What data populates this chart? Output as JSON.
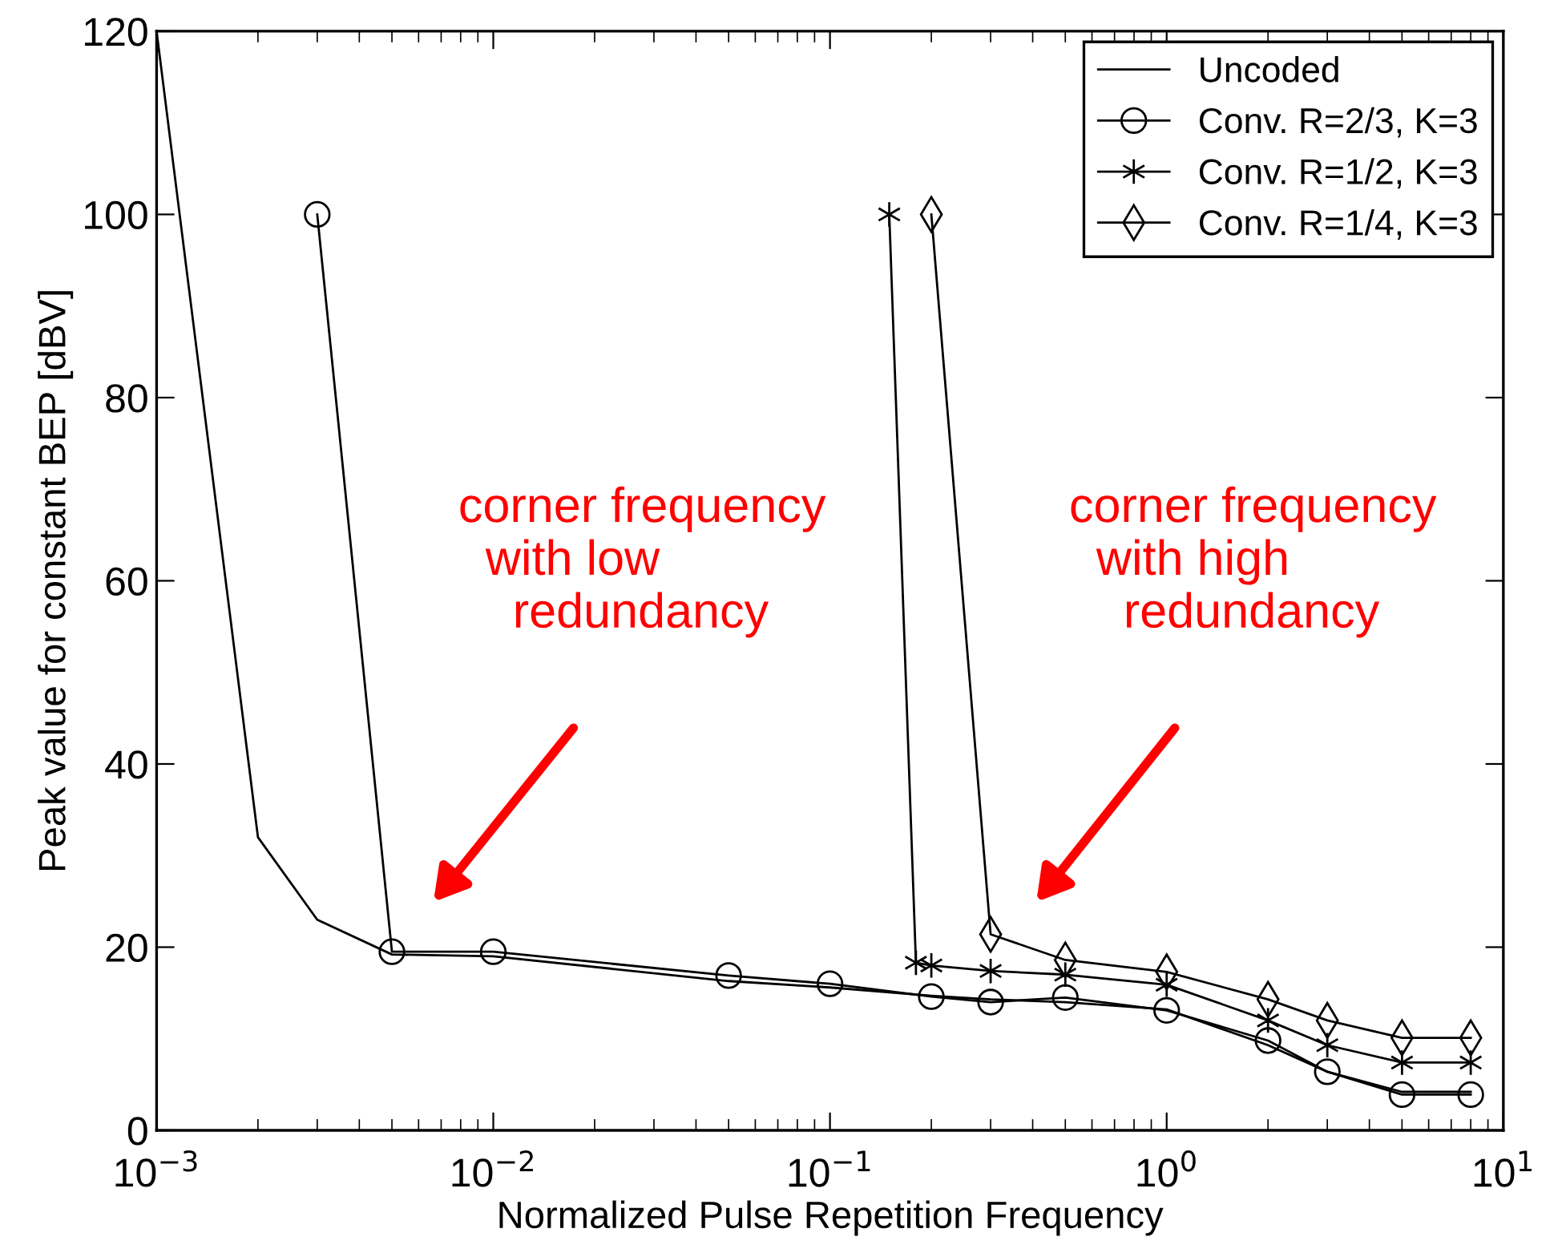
{
  "chart_data": {
    "type": "line",
    "xlabel": "Normalized Pulse Repetition Frequency",
    "ylabel": "Peak value for constant BEP [dBV]",
    "log": "x",
    "xlim": [
      0.001,
      10
    ],
    "xticks": [
      {
        "value": 0.001,
        "label": "10$^{−3}$"
      },
      {
        "value": 0.01,
        "label": "10$^{−2}$"
      },
      {
        "value": 0.1,
        "label": "10$^{−1}$"
      },
      {
        "value": 1,
        "label": "10$^{0}$"
      },
      {
        "value": 10,
        "label": "10$^{1}$"
      }
    ],
    "ylim": [
      0,
      120
    ],
    "yticks": [
      0,
      20,
      40,
      60,
      80,
      100,
      120
    ],
    "grid": false,
    "legend": "top right",
    "series": [
      {
        "name": "Uncoded",
        "color": "#000000",
        "marker": "none",
        "x": [
          0.001,
          0.002,
          0.003,
          0.005,
          0.01,
          0.05,
          0.1,
          0.2,
          0.3,
          0.5,
          1,
          2,
          3,
          5,
          8
        ],
        "values": [
          120,
          32,
          23,
          19.2,
          19,
          16.3,
          15.6,
          14.7,
          14.3,
          14,
          13.2,
          9.3,
          6.4,
          4.2,
          4.2
        ]
      },
      {
        "name": "Conv. R=2/3, K=3",
        "color": "#000000",
        "marker": "circle",
        "x": [
          0.003,
          0.005,
          0.01,
          0.05,
          0.1,
          0.2,
          0.3,
          0.5,
          1,
          2,
          3,
          5,
          8
        ],
        "values": [
          100,
          19.5,
          19.5,
          16.9,
          16,
          14.6,
          14,
          14.5,
          13.1,
          9.8,
          6.4,
          3.9,
          3.9
        ]
      },
      {
        "name": "Conv. R=1/2, K=3",
        "color": "#000000",
        "marker": "cross",
        "x": [
          0.15,
          0.18,
          0.2,
          0.3,
          0.5,
          1,
          2,
          3,
          5,
          8
        ],
        "values": [
          100,
          18.3,
          18,
          17.4,
          17,
          15.9,
          12,
          9.3,
          7.4,
          7.4
        ]
      },
      {
        "name": "Conv. R=1/4, K=3",
        "color": "#000000",
        "marker": "diamond",
        "x": [
          0.2,
          0.3,
          0.5,
          1,
          2,
          3,
          5,
          8
        ],
        "values": [
          100,
          21.4,
          18.6,
          17.3,
          14.3,
          12,
          10.1,
          10.1
        ]
      }
    ],
    "annotations": [
      "corner frequency\n  with low\n    redundancy",
      "corner frequency\n  with high\n    redundancy"
    ]
  }
}
